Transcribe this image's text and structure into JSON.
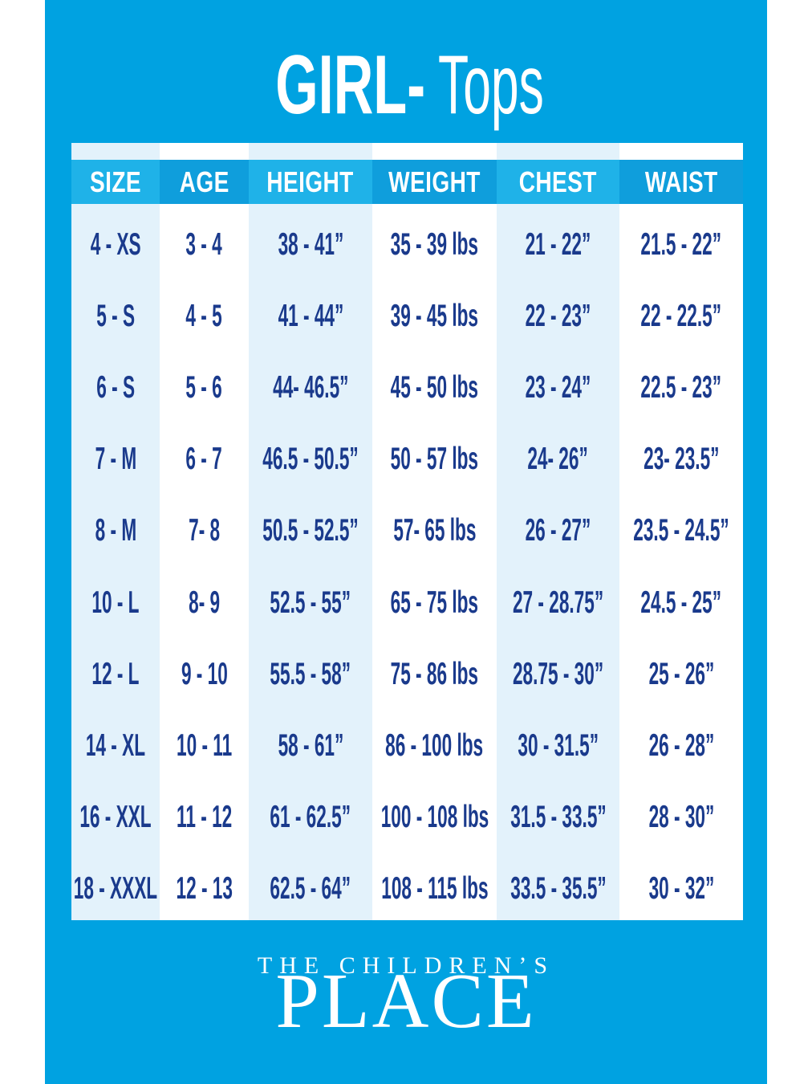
{
  "title": {
    "category": "GIRL-",
    "item": "Tops"
  },
  "chart_data": {
    "type": "table",
    "title": "GIRL- Tops",
    "columns": [
      "SIZE",
      "AGE",
      "HEIGHT",
      "WEIGHT",
      "CHEST",
      "WAIST"
    ],
    "rows": [
      [
        "4 - XS",
        "3 - 4",
        "38 - 41”",
        "35 - 39 lbs",
        "21 - 22”",
        "21.5 - 22”"
      ],
      [
        "5 - S",
        "4 - 5",
        "41 - 44”",
        "39 - 45 lbs",
        "22 - 23”",
        "22 - 22.5”"
      ],
      [
        "6 - S",
        "5 - 6",
        "44- 46.5”",
        "45 - 50 lbs",
        "23 - 24”",
        "22.5 - 23”"
      ],
      [
        "7 - M",
        "6 - 7",
        "46.5 - 50.5”",
        "50 - 57 lbs",
        "24- 26”",
        "23- 23.5”"
      ],
      [
        "8 - M",
        "7- 8",
        "50.5 - 52.5”",
        "57- 65 lbs",
        "26 - 27”",
        "23.5 - 24.5”"
      ],
      [
        "10 - L",
        "8- 9",
        "52.5 - 55”",
        "65 - 75 lbs",
        "27 - 28.75”",
        "24.5 - 25”"
      ],
      [
        "12 - L",
        "9 - 10",
        "55.5 - 58”",
        "75 - 86 lbs",
        "28.75 - 30”",
        "25 - 26”"
      ],
      [
        "14 - XL",
        "10 - 11",
        "58 - 61”",
        "86 - 100 lbs",
        "30 - 31.5”",
        "26 - 28”"
      ],
      [
        "16 - XXL",
        "11 - 12",
        "61 - 62.5”",
        "100 - 108 lbs",
        "31.5 - 33.5”",
        "28 - 30”"
      ],
      [
        "18 - XXXL",
        "12 - 13",
        "62.5 - 64”",
        "108 - 115 lbs",
        "33.5 - 35.5”",
        "30 - 32”"
      ]
    ],
    "layout": {
      "striped_columns": "odd columns light blue, even columns white",
      "header_fill_alternates": true
    }
  },
  "footer": {
    "brand_line1": "THE CHILDREN’S",
    "brand_line2": "PLACE"
  },
  "colors": {
    "canvas-blue": "#00a2e1",
    "header-light": "#1fb2e8",
    "header-dark": "#0f9edc",
    "stripe-light": "#e3f2fb",
    "panel-white": "#ffffff",
    "text-navy": "#1a3a8c",
    "title-white": "#ffffff"
  }
}
